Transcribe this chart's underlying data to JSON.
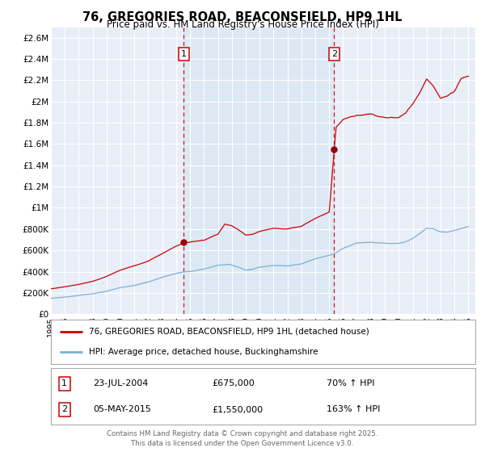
{
  "title": "76, GREGORIES ROAD, BEACONSFIELD, HP9 1HL",
  "subtitle": "Price paid vs. HM Land Registry's House Price Index (HPI)",
  "title_fontsize": 10.5,
  "subtitle_fontsize": 8.5,
  "background_color": "#ffffff",
  "plot_background_color": "#e8eef8",
  "grid_color": "#ffffff",
  "red_line_color": "#cc0000",
  "blue_line_color": "#7bafd4",
  "vline_color": "#cc0000",
  "shade_color": "#dde8f5",
  "ylim": [
    0,
    2700000
  ],
  "xlim_start": 1995.0,
  "xlim_end": 2025.5,
  "yticks": [
    0,
    200000,
    400000,
    600000,
    800000,
    1000000,
    1200000,
    1400000,
    1600000,
    1800000,
    2000000,
    2200000,
    2400000,
    2600000
  ],
  "ytick_labels": [
    "£0",
    "£200K",
    "£400K",
    "£600K",
    "£800K",
    "£1M",
    "£1.2M",
    "£1.4M",
    "£1.6M",
    "£1.8M",
    "£2M",
    "£2.2M",
    "£2.4M",
    "£2.6M"
  ],
  "xticks": [
    1995,
    1996,
    1997,
    1998,
    1999,
    2000,
    2001,
    2002,
    2003,
    2004,
    2005,
    2006,
    2007,
    2008,
    2009,
    2010,
    2011,
    2012,
    2013,
    2014,
    2015,
    2016,
    2017,
    2018,
    2019,
    2020,
    2021,
    2022,
    2023,
    2024,
    2025
  ],
  "event1_x": 2004.55,
  "event1_label": "1",
  "event1_price": 675000,
  "event2_x": 2015.36,
  "event2_label": "2",
  "event2_price": 1550000,
  "legend_red_label": "76, GREGORIES ROAD, BEACONSFIELD, HP9 1HL (detached house)",
  "legend_blue_label": "HPI: Average price, detached house, Buckinghamshire",
  "table_row1": [
    "1",
    "23-JUL-2004",
    "£675,000",
    "70% ↑ HPI"
  ],
  "table_row2": [
    "2",
    "05-MAY-2015",
    "£1,550,000",
    "163% ↑ HPI"
  ],
  "footer": "Contains HM Land Registry data © Crown copyright and database right 2025.\nThis data is licensed under the Open Government Licence v3.0."
}
